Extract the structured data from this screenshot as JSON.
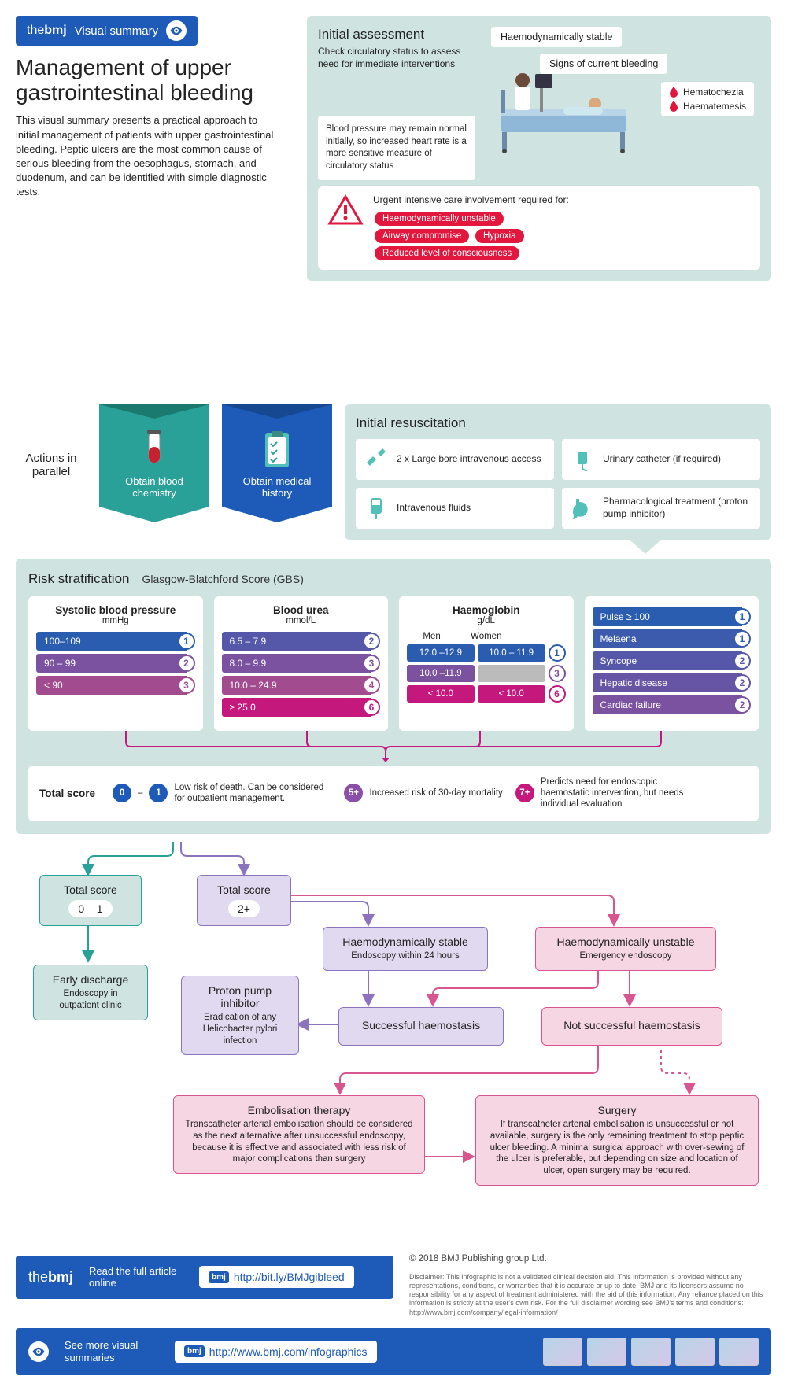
{
  "colors": {
    "brand_blue": "#1e5bb8",
    "panel_teal": "#cfe4e1",
    "teal_line": "#2aa198",
    "purple": "#8c73be",
    "purple_light": "#e1d9ef",
    "pink": "#d8558f",
    "pink_light": "#f5d6e2",
    "magenta": "#c4187c",
    "red": "#e3173e",
    "scale": [
      "#2a5db0",
      "#5558a8",
      "#7a52a0",
      "#a34b8f",
      "#c4187c"
    ]
  },
  "header": {
    "brand_prefix": "the",
    "brand": "bmj",
    "tagline": "Visual summary",
    "title": "Management of upper gastrointestinal bleeding",
    "intro": "This visual summary presents a practical approach to initial management of patients with upper gastrointestinal bleeding. Peptic ulcers are the most common cause of serious bleeding from the oesophagus, stomach, and duodenum, and can be identified with simple diagnostic tests."
  },
  "assessment": {
    "title": "Initial assessment",
    "subtitle": "Check circulatory status to assess need for immediate interventions",
    "note": "Blood pressure may remain normal initially, so increased heart rate is a more sensitive measure of circulatory status",
    "haemo": "Haemodynamically stable",
    "signs": "Signs of current bleeding",
    "drops": [
      "Hematochezia",
      "Haematemesis"
    ],
    "urgent_label": "Urgent intensive care involvement required for:",
    "urgent": [
      "Haemodynamically unstable",
      "Airway compromise",
      "Hypoxia",
      "Reduced level of consciousness"
    ]
  },
  "actions": {
    "label": "Actions in parallel",
    "banners": [
      {
        "label": "Obtain blood chemistry",
        "color": "#2aa198"
      },
      {
        "label": "Obtain medical history",
        "color": "#1e5bb8"
      }
    ]
  },
  "resus": {
    "title": "Initial resuscitation",
    "items": [
      "2 x Large bore intravenous access",
      "Urinary catheter (if required)",
      "Intravenous fluids",
      "Pharmacological treatment (proton pump inhibitor)"
    ]
  },
  "risk": {
    "title": "Risk stratification",
    "scale_name": "Glasgow-Blatchford Score (GBS)",
    "columns": {
      "sbp": {
        "title": "Systolic blood pressure",
        "unit": "mmHg",
        "rows": [
          {
            "label": "100–109",
            "pts": 1,
            "color": "#2a5db0"
          },
          {
            "label": "90 – 99",
            "pts": 2,
            "color": "#7a52a0"
          },
          {
            "label": "< 90",
            "pts": 3,
            "color": "#a34b8f"
          }
        ]
      },
      "urea": {
        "title": "Blood urea",
        "unit": "mmol/L",
        "rows": [
          {
            "label": "6.5 – 7.9",
            "pts": 2,
            "color": "#5558a8"
          },
          {
            "label": "8.0 – 9.9",
            "pts": 3,
            "color": "#7a52a0"
          },
          {
            "label": "10.0 – 24.9",
            "pts": 4,
            "color": "#a34b8f"
          },
          {
            "label": "≥ 25.0",
            "pts": 6,
            "color": "#c4187c"
          }
        ]
      },
      "hb": {
        "title": "Haemoglobin",
        "unit": "g/dL",
        "head": [
          "Men",
          "Women"
        ],
        "rows": [
          {
            "m": "12.0 –12.9",
            "w": "10.0 – 11.9",
            "pts": 1,
            "color": "#2a5db0"
          },
          {
            "m": "10.0 –11.9",
            "w": "",
            "pts": 3,
            "color": "#7a52a0"
          },
          {
            "m": "< 10.0",
            "w": "< 10.0",
            "pts": 6,
            "color": "#c4187c"
          }
        ]
      },
      "other": {
        "rows": [
          {
            "label": "Pulse ≥ 100",
            "pts": 1,
            "color": "#2a5db0"
          },
          {
            "label": "Melaena",
            "pts": 1,
            "color": "#3c5bac"
          },
          {
            "label": "Syncope",
            "pts": 2,
            "color": "#5558a8"
          },
          {
            "label": "Hepatic disease",
            "pts": 2,
            "color": "#6655a4"
          },
          {
            "label": "Cardiac failure",
            "pts": 2,
            "color": "#7a52a0"
          }
        ]
      }
    },
    "total": {
      "label": "Total score",
      "items": [
        {
          "badge": "0 – 1",
          "color": "#1e5bb8",
          "shape": "double",
          "text": "Low risk of death. Can be considered for outpatient management."
        },
        {
          "badge": "5+",
          "color": "#8c4fa8",
          "shape": "single",
          "text": "Increased risk of 30-day mortality"
        },
        {
          "badge": "7+",
          "color": "#c4187c",
          "shape": "single",
          "text": "Predicts need for endoscopic haemostatic intervention, but needs individual evaluation"
        }
      ]
    }
  },
  "flow": {
    "score01": {
      "label": "Total score",
      "range": "0  –  1"
    },
    "score2": {
      "label": "Total score",
      "range": "2+"
    },
    "early": {
      "title": "Early discharge",
      "text": "Endoscopy in outpatient clinic"
    },
    "ppi": {
      "title": "Proton pump inhibitor",
      "text": "Eradication of any Helicobacter pylori infection"
    },
    "stable": {
      "title": "Haemodynamically stable",
      "text": "Endoscopy within 24 hours"
    },
    "unstable": {
      "title": "Haemodynamically unstable",
      "text": "Emergency endoscopy"
    },
    "success": {
      "title": "Successful haemostasis"
    },
    "notsuccess": {
      "title": "Not successful haemostasis"
    },
    "embol": {
      "title": "Embolisation therapy",
      "text": "Transcatheter arterial embolisation should be considered as the next alternative after unsuccessful endoscopy, because it is effective and associated with less risk of major complications than surgery"
    },
    "surgery": {
      "title": "Surgery",
      "text": "If transcatheter arterial embolisation is unsuccessful or not available, surgery is the only remaining treatment to stop peptic ulcer bleeding. A minimal surgical approach with over-sewing of the ulcer is preferable, but depending on size and location of ulcer, open surgery may be required."
    }
  },
  "footer": {
    "read_label": "Read the full article online",
    "read_url": "http://bit.ly/BMJgibleed",
    "more_label": "See more visual summaries",
    "more_url": "http://www.bmj.com/infographics",
    "copyright": "© 2018 BMJ Publishing group Ltd.",
    "disclaimer": "Disclaimer: This infographic is not a validated clinical decision aid. This information is provided without any representations, conditions, or warranties that it is accurate or up to date. BMJ and its licensors assume no responsibility for any aspect of treatment administered with the aid of this information. Any reliance placed on this information is strictly at the user's own risk. For the full disclaimer wording see BMJ's terms and conditions: http://www.bmj.com/company/legal-information/"
  }
}
